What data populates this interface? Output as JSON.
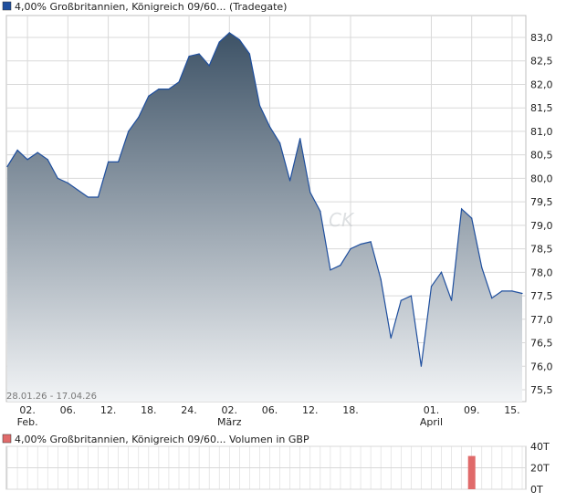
{
  "colors": {
    "price_line": "#1f4f9e",
    "price_fill_top": "#3d5266",
    "price_fill_bottom": "#f2f4f6",
    "volume_bar": "#e06a6a",
    "grid": "#d9d9d9",
    "frame": "#bfbfbf",
    "legend_square_price": "#1f4f9e",
    "legend_square_volume": "#e06a6a",
    "plot_bg": "#ffffff"
  },
  "legend": {
    "price": "4,00% Großbritannien, Königreich 09/60... (Tradegate)",
    "volume": "4,00% Großbritannien, Königreich 09/60... Volumen in GBP"
  },
  "date_range": "28.01.26 - 17.04.26",
  "watermark": "CK",
  "chart_data": [
    {
      "type": "area",
      "series": [
        {
          "name": "4,00% Großbritannien, Königreich 09/60... (Tradegate)",
          "values": [
            80.25,
            80.6,
            80.4,
            80.55,
            80.4,
            80.0,
            79.9,
            79.75,
            79.6,
            79.6,
            80.35,
            80.35,
            81.0,
            81.3,
            81.75,
            81.9,
            81.9,
            82.05,
            82.6,
            82.65,
            82.4,
            82.9,
            83.1,
            82.95,
            82.65,
            81.55,
            81.1,
            80.75,
            79.95,
            80.85,
            79.7,
            79.3,
            78.05,
            78.15,
            78.5,
            78.6,
            78.65,
            77.85,
            76.6,
            77.4,
            77.5,
            76.0,
            77.7,
            78.0,
            77.4,
            79.35,
            79.15,
            78.1,
            77.45,
            77.6,
            77.6,
            77.55
          ]
        }
      ],
      "y_ticks": [
        "83,0",
        "82,5",
        "82,0",
        "81,5",
        "81,0",
        "80,5",
        "80,0",
        "79,5",
        "79,0",
        "78,5",
        "78,0",
        "77,5",
        "77,0",
        "76,5",
        "76,0",
        "75,5"
      ],
      "ylim": [
        75.25,
        83.4
      ],
      "x_ticks": [
        {
          "label": "02.",
          "sub": "Feb.",
          "index": 2
        },
        {
          "label": "06.",
          "sub": "",
          "index": 6
        },
        {
          "label": "12.",
          "sub": "",
          "index": 10
        },
        {
          "label": "18.",
          "sub": "",
          "index": 14
        },
        {
          "label": "24.",
          "sub": "",
          "index": 18
        },
        {
          "label": "02.",
          "sub": "März",
          "index": 22
        },
        {
          "label": "06.",
          "sub": "",
          "index": 26
        },
        {
          "label": "12.",
          "sub": "",
          "index": 30
        },
        {
          "label": "18.",
          "sub": "",
          "index": 34
        },
        {
          "label": "01.",
          "sub": "April",
          "index": 42
        },
        {
          "label": "09.",
          "sub": "",
          "index": 46
        },
        {
          "label": "15.",
          "sub": "",
          "index": 50
        }
      ],
      "grid": true
    },
    {
      "type": "bar",
      "series": [
        {
          "name": "4,00% Großbritannien, Königreich 09/60... Volumen in GBP",
          "bars": [
            {
              "index": 46,
              "value": 31000
            }
          ]
        }
      ],
      "y_ticks": [
        "40T",
        "20T",
        "0T"
      ],
      "ylim": [
        0,
        40000
      ],
      "grid": true
    }
  ]
}
